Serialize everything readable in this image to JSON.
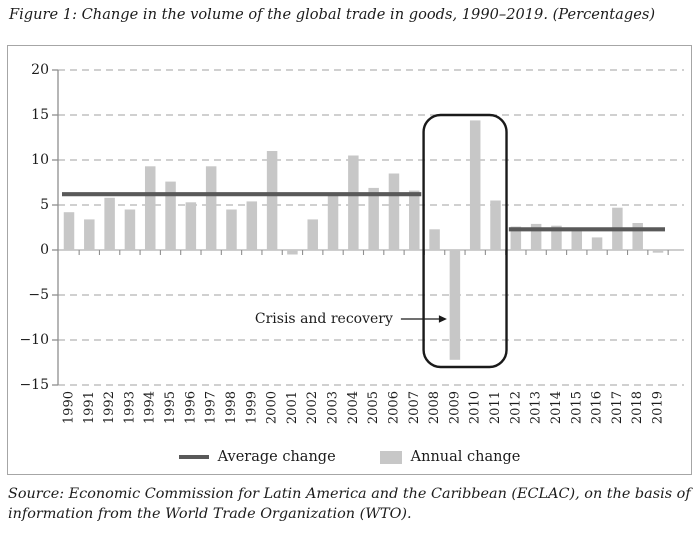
{
  "figure": {
    "title": "Figure 1: Change in the volume of the global trade in goods, 1990–2019. (Percentages)",
    "source": "Source: Economic Commission for Latin America and the Caribbean (ECLAC), on the basis of information from the World Trade Organization (WTO)."
  },
  "legend": {
    "average_label": "Average change",
    "annual_label": "Annual change"
  },
  "colors": {
    "bar": "#c7c7c7",
    "average_line": "#595959",
    "gridline": "#b5b5b5",
    "zero_line": "#b0b0b0",
    "axis": "#8f8f8f",
    "box": "#1a1a1a",
    "text": "#1c1c1c"
  },
  "chart_data": {
    "type": "bar",
    "title": "Change in the volume of the global trade in goods, 1990-2019 (Percentages)",
    "xlabel": "",
    "ylabel": "",
    "ylim": [
      -15,
      20
    ],
    "ytick_step": 5,
    "grid": "dashed-horizontal",
    "legend_position": "bottom",
    "categories": [
      "1990",
      "1991",
      "1992",
      "1993",
      "1994",
      "1995",
      "1996",
      "1997",
      "1998",
      "1999",
      "2000",
      "2001",
      "2002",
      "2003",
      "2004",
      "2005",
      "2006",
      "2007",
      "2008",
      "2009",
      "2010",
      "2011",
      "2012",
      "2013",
      "2014",
      "2015",
      "2016",
      "2017",
      "2018",
      "2019"
    ],
    "series": [
      {
        "name": "Annual change",
        "type": "bar",
        "values": [
          4.2,
          3.4,
          5.8,
          4.5,
          9.3,
          7.6,
          5.3,
          9.3,
          4.5,
          5.4,
          11.0,
          -0.5,
          3.4,
          6.1,
          10.5,
          6.9,
          8.5,
          6.6,
          2.3,
          -12.2,
          14.4,
          5.5,
          2.6,
          2.9,
          2.7,
          2.2,
          1.4,
          4.7,
          3.0,
          -0.3
        ]
      },
      {
        "name": "Average change",
        "type": "line-segments",
        "segments": [
          {
            "from": "1990",
            "to": "2007",
            "value": 6.2
          },
          {
            "from": "2012",
            "to": "2019",
            "value": 2.3
          }
        ]
      }
    ],
    "highlight_box": {
      "from": "2008",
      "to": "2011"
    },
    "annotation": {
      "text": "Crisis and recovery",
      "target": "2009"
    }
  }
}
